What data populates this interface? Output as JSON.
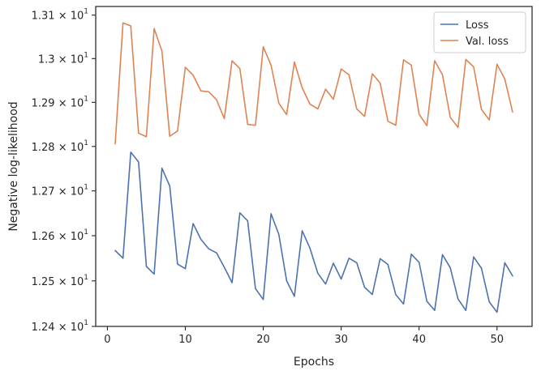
{
  "chart_data": {
    "type": "line",
    "title": "",
    "xlabel": "Epochs",
    "ylabel": "Negative log-likelihood",
    "xlim": [
      -1.5,
      54.5
    ],
    "ylim": [
      12.4,
      13.12
    ],
    "yscale": "log",
    "grid": false,
    "legend_position": "top-right",
    "x_ticks": [
      0,
      10,
      20,
      30,
      40,
      50
    ],
    "x_tick_labels": [
      "0",
      "10",
      "20",
      "30",
      "40",
      "50"
    ],
    "y_ticks": [
      12.4,
      12.5,
      12.6,
      12.7,
      12.8,
      12.9,
      13.0,
      13.1
    ],
    "y_tick_labels": [
      {
        "base": "1.24",
        "exp": "1"
      },
      {
        "base": "1.25",
        "exp": "1"
      },
      {
        "base": "1.26",
        "exp": "1"
      },
      {
        "base": "1.27",
        "exp": "1"
      },
      {
        "base": "1.28",
        "exp": "1"
      },
      {
        "base": "1.29",
        "exp": "1"
      },
      {
        "base": "1.3",
        "exp": "1"
      },
      {
        "base": "1.31",
        "exp": "1"
      }
    ],
    "x": [
      1,
      2,
      3,
      4,
      5,
      6,
      7,
      8,
      9,
      10,
      11,
      12,
      13,
      14,
      15,
      16,
      17,
      18,
      19,
      20,
      21,
      22,
      23,
      24,
      25,
      26,
      27,
      28,
      29,
      30,
      31,
      32,
      33,
      34,
      35,
      36,
      37,
      38,
      39,
      40,
      41,
      42,
      43,
      44,
      45,
      46,
      47,
      48,
      49,
      50,
      51,
      52
    ],
    "series": [
      {
        "name": "Loss",
        "color": "#4c72b0",
        "values": [
          12.567,
          12.55,
          12.787,
          12.765,
          12.532,
          12.515,
          12.751,
          12.711,
          12.537,
          12.527,
          12.627,
          12.592,
          12.571,
          12.562,
          12.53,
          12.496,
          12.651,
          12.633,
          12.483,
          12.459,
          12.649,
          12.603,
          12.5,
          12.466,
          12.611,
          12.572,
          12.517,
          12.493,
          12.539,
          12.504,
          12.55,
          12.54,
          12.486,
          12.47,
          12.549,
          12.536,
          12.47,
          12.449,
          12.559,
          12.541,
          12.455,
          12.435,
          12.558,
          12.529,
          12.46,
          12.435,
          12.553,
          12.528,
          12.454,
          12.431,
          12.54,
          12.511
        ]
      },
      {
        "name": "Val. loss",
        "color": "#dd8452",
        "values": [
          12.806,
          13.082,
          13.075,
          12.83,
          12.822,
          13.069,
          13.017,
          12.823,
          12.835,
          12.98,
          12.962,
          12.926,
          12.924,
          12.906,
          12.863,
          12.995,
          12.977,
          12.85,
          12.848,
          13.027,
          12.985,
          12.898,
          12.872,
          12.992,
          12.933,
          12.896,
          12.885,
          12.93,
          12.907,
          12.976,
          12.963,
          12.885,
          12.868,
          12.965,
          12.944,
          12.857,
          12.848,
          12.997,
          12.985,
          12.873,
          12.847,
          12.995,
          12.963,
          12.866,
          12.843,
          12.998,
          12.981,
          12.884,
          12.86,
          12.987,
          12.953,
          12.878
        ]
      }
    ]
  }
}
